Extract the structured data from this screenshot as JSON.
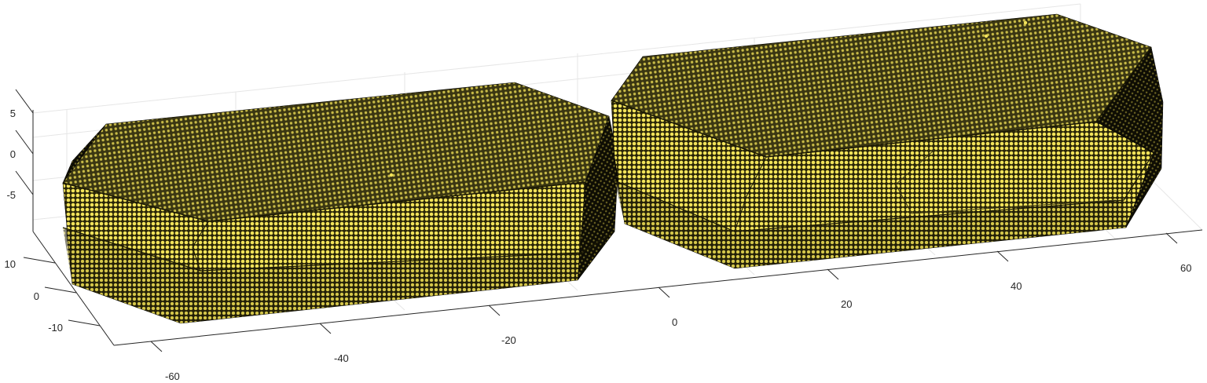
{
  "chart_data": {
    "type": "3d-surface",
    "title": "",
    "xlabel": "",
    "ylabel": "",
    "zlabel": "",
    "grid": true,
    "x_ticks": [
      "-60",
      "-40",
      "-20",
      "0",
      "20",
      "40",
      "60"
    ],
    "y_ticks": [
      "-10",
      "0",
      "10"
    ],
    "z_ticks": [
      "-5",
      "0",
      "5"
    ],
    "objects": [
      {
        "name": "",
        "face_color": "#f2e35a",
        "edge_color": "#000000",
        "x_range": [
          -60,
          -5
        ],
        "y_range": [
          -14,
          14
        ],
        "z_range": [
          -8,
          4
        ]
      },
      {
        "name": "",
        "face_color": "#f2e35a",
        "edge_color": "#000000",
        "x_range": [
          2,
          62
        ],
        "y_range": [
          -14,
          14
        ],
        "z_range": [
          -8,
          4
        ]
      }
    ]
  }
}
